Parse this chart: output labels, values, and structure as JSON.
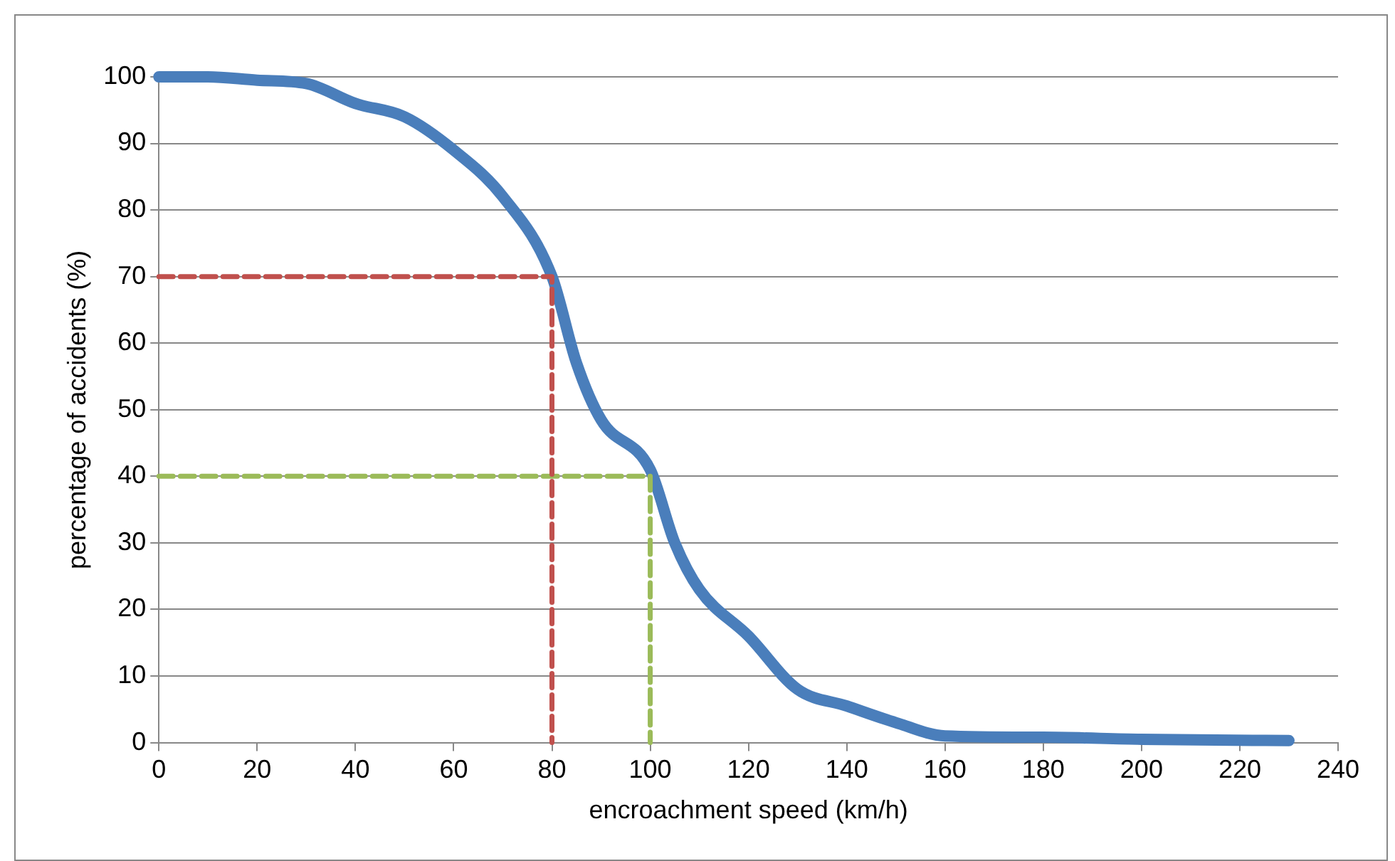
{
  "chart_data": {
    "type": "line",
    "xlabel": "encroachment speed (km/h)",
    "ylabel": "percentage of accidents (%)",
    "xlim": [
      0,
      240
    ],
    "xticks": [
      0,
      20,
      40,
      60,
      80,
      100,
      120,
      140,
      160,
      180,
      200,
      220,
      240
    ],
    "ylim": [
      0,
      100
    ],
    "yticks": [
      0,
      10,
      20,
      30,
      40,
      50,
      60,
      70,
      80,
      90,
      100
    ],
    "grid": "y",
    "legend": false,
    "marker": "none",
    "series": [
      {
        "color": "#4a7ebb",
        "line_style": "solid",
        "x": [
          0,
          10,
          20,
          30,
          40,
          50,
          60,
          70,
          80,
          85,
          90,
          100,
          105,
          110,
          120,
          130,
          140,
          150,
          160,
          180,
          200,
          230
        ],
        "values": [
          100,
          100,
          99.5,
          99,
          96,
          94,
          89,
          82,
          70,
          57,
          48.5,
          41,
          30,
          23,
          16,
          8,
          5.5,
          3,
          1,
          0.8,
          0.5,
          0.3
        ]
      },
      {
        "color": "#c0504d",
        "line_style": "dashed",
        "x": [
          0,
          80,
          80
        ],
        "values": [
          70,
          70,
          0
        ]
      },
      {
        "color": "#9bbb59",
        "line_style": "dashed",
        "x": [
          0,
          100,
          100
        ],
        "values": [
          40,
          40,
          0
        ]
      }
    ]
  }
}
